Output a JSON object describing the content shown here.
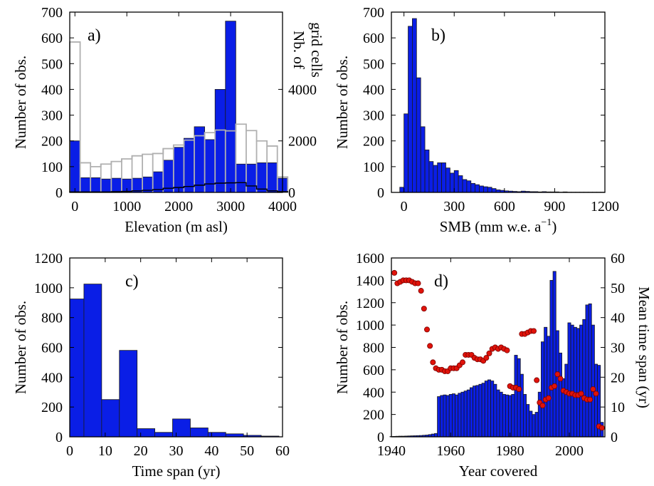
{
  "colors": {
    "bar": "#0a1ee6",
    "bar_edge": "#1a1a1a",
    "outline": "#b0b0b0",
    "dot": "#e0130a",
    "dot_edge": "#7a0000"
  },
  "chart_data": [
    {
      "id": "a",
      "panel_label": "a)",
      "type": "bar",
      "xlabel": "Elevation (m asl)",
      "ylabel": "Number of obs.",
      "y2label_lines": [
        "Nb. of",
        "grid cells"
      ],
      "xlim": [
        -100,
        4000
      ],
      "ylim": [
        0,
        700
      ],
      "y2lim": [
        0,
        7000
      ],
      "xticks": [
        "0",
        "1000",
        "2000",
        "3000",
        "4000"
      ],
      "yticks": [
        "0",
        "100",
        "200",
        "300",
        "400",
        "500",
        "600",
        "700"
      ],
      "y2ticks": [
        "0",
        "2000",
        "4000"
      ],
      "bin_starts": [
        -100,
        100,
        300,
        500,
        700,
        900,
        1100,
        1300,
        1500,
        1700,
        1900,
        2100,
        2300,
        2500,
        2700,
        2900,
        3100,
        3300,
        3500,
        3700,
        3900
      ],
      "bin_width": 200,
      "series": [
        {
          "type": "bar",
          "values": [
            200,
            57,
            57,
            52,
            55,
            52,
            55,
            60,
            80,
            125,
            175,
            210,
            255,
            205,
            400,
            665,
            110,
            110,
            115,
            115,
            55
          ]
        },
        {
          "type": "step-outline",
          "axis": "y2",
          "values": [
            5840,
            1150,
            1000,
            1100,
            1200,
            1300,
            1420,
            1480,
            1510,
            1700,
            1840,
            2030,
            2200,
            2320,
            2420,
            2390,
            2650,
            2400,
            2000,
            1800,
            600
          ]
        },
        {
          "type": "step-line",
          "axis": "y2",
          "values": [
            20,
            20,
            20,
            20,
            30,
            40,
            60,
            80,
            110,
            160,
            190,
            230,
            280,
            330,
            360,
            370,
            380,
            250,
            130,
            60,
            30
          ]
        }
      ]
    },
    {
      "id": "b",
      "panel_label": "b)",
      "type": "bar",
      "xlabel": "SMB (mm w.e. a",
      "xlabel_sup": "−1",
      "xlabel_tail": ")",
      "ylabel": "Number of obs.",
      "xlim": [
        -75,
        1200
      ],
      "ylim": [
        0,
        700
      ],
      "xticks": [
        "0",
        "300",
        "600",
        "900",
        "1200"
      ],
      "yticks": [
        "0",
        "100",
        "200",
        "300",
        "400",
        "500",
        "600",
        "700"
      ],
      "bin_starts": [
        -25,
        0,
        25,
        50,
        75,
        100,
        125,
        150,
        175,
        200,
        225,
        250,
        275,
        300,
        325,
        350,
        375,
        400,
        425,
        450,
        475,
        500,
        525,
        550,
        575,
        600,
        625,
        650,
        675,
        700,
        725,
        750,
        775,
        800,
        825,
        850,
        875,
        900,
        925,
        950,
        975,
        1000,
        1025,
        1050,
        1075,
        1100,
        1125,
        1150,
        1175
      ],
      "bin_width": 25,
      "series": [
        {
          "type": "bar",
          "values": [
            20,
            305,
            645,
            675,
            445,
            255,
            165,
            120,
            105,
            115,
            115,
            95,
            75,
            85,
            65,
            50,
            45,
            35,
            30,
            25,
            22,
            20,
            15,
            10,
            8,
            6,
            5,
            4,
            3,
            5,
            4,
            3,
            3,
            2,
            3,
            2,
            2,
            2,
            1,
            2,
            1,
            1,
            1,
            1,
            1,
            1,
            1,
            1,
            1
          ]
        }
      ]
    },
    {
      "id": "c",
      "panel_label": "c)",
      "type": "bar",
      "xlabel": "Time span (yr)",
      "ylabel": "Number of obs.",
      "xlim": [
        0,
        60
      ],
      "ylim": [
        0,
        1200
      ],
      "xticks": [
        "0",
        "10",
        "20",
        "30",
        "40",
        "50",
        "60"
      ],
      "yticks": [
        "0",
        "200",
        "400",
        "600",
        "800",
        "1000",
        "1200"
      ],
      "bin_starts": [
        0,
        4,
        9,
        14,
        19,
        24,
        29,
        34,
        39,
        44,
        49,
        54
      ],
      "bin_width": 5,
      "first_bin_width": 4,
      "series": [
        {
          "type": "bar",
          "values": [
            925,
            1025,
            250,
            580,
            55,
            30,
            120,
            60,
            30,
            20,
            10,
            5
          ]
        }
      ]
    },
    {
      "id": "d",
      "panel_label": "d)",
      "type": "bar",
      "xlabel": "Year covered",
      "ylabel": "Number of obs.",
      "y2label": "Mean time span (yr)",
      "xlim": [
        1940,
        2012
      ],
      "ylim": [
        0,
        1600
      ],
      "y2lim": [
        0,
        60
      ],
      "xticks": [
        "1940",
        "1960",
        "1980",
        "2000"
      ],
      "yticks": [
        "0",
        "200",
        "400",
        "600",
        "800",
        "1000",
        "1200",
        "1400",
        "1600"
      ],
      "y2ticks": [
        "0",
        "10",
        "20",
        "30",
        "40",
        "50",
        "60"
      ],
      "years": [
        1940,
        1941,
        1942,
        1943,
        1944,
        1945,
        1946,
        1947,
        1948,
        1949,
        1950,
        1951,
        1952,
        1953,
        1954,
        1955,
        1956,
        1957,
        1958,
        1959,
        1960,
        1961,
        1962,
        1963,
        1964,
        1965,
        1966,
        1967,
        1968,
        1969,
        1970,
        1971,
        1972,
        1973,
        1974,
        1975,
        1976,
        1977,
        1978,
        1979,
        1980,
        1981,
        1982,
        1983,
        1984,
        1985,
        1986,
        1987,
        1988,
        1989,
        1990,
        1991,
        1992,
        1993,
        1994,
        1995,
        1996,
        1997,
        1998,
        1999,
        2000,
        2001,
        2002,
        2003,
        2004,
        2005,
        2006,
        2007,
        2008,
        2009,
        2010,
        2011
      ],
      "series": [
        {
          "type": "bar",
          "values": [
            3,
            4,
            5,
            6,
            6,
            7,
            8,
            9,
            10,
            11,
            12,
            14,
            16,
            20,
            25,
            30,
            360,
            370,
            375,
            370,
            380,
            385,
            375,
            390,
            400,
            410,
            420,
            440,
            455,
            460,
            470,
            480,
            500,
            510,
            500,
            470,
            420,
            400,
            380,
            375,
            370,
            380,
            730,
            700,
            560,
            380,
            290,
            230,
            200,
            220,
            400,
            850,
            980,
            900,
            1400,
            1480,
            950,
            750,
            520,
            650,
            1020,
            1000,
            980,
            970,
            1000,
            1050,
            1180,
            1190,
            1000,
            650,
            640,
            130
          ]
        },
        {
          "type": "scatter",
          "axis": "y2",
          "x": [
            1941,
            1942,
            1943,
            1944,
            1945,
            1946,
            1947,
            1948,
            1949,
            1950,
            1951,
            1952,
            1953,
            1954,
            1955,
            1956,
            1957,
            1958,
            1959,
            1960,
            1961,
            1962,
            1963,
            1964,
            1965,
            1966,
            1967,
            1968,
            1969,
            1970,
            1971,
            1972,
            1973,
            1974,
            1975,
            1976,
            1977,
            1978,
            1979,
            1980,
            1981,
            1982,
            1983,
            1984,
            1985,
            1986,
            1987,
            1988,
            1989,
            1990,
            1991,
            1992,
            1993,
            1994,
            1995,
            1996,
            1997,
            1998,
            1999,
            2000,
            2001,
            2002,
            2003,
            2004,
            2005,
            2006,
            2007,
            2008,
            2009,
            2010,
            2011
          ],
          "values": [
            55,
            51.5,
            52,
            52.5,
            52.5,
            52.5,
            52,
            51.5,
            51.5,
            49,
            43,
            36,
            30.5,
            25,
            23,
            22.5,
            22.5,
            22,
            22,
            23,
            23,
            23,
            24,
            25,
            27.5,
            27.5,
            27.5,
            26.5,
            26,
            26,
            25.5,
            26.5,
            28,
            29.5,
            30,
            29.5,
            30,
            29.5,
            29,
            17,
            16.5,
            16.5,
            16,
            34.5,
            34.5,
            35,
            35.5,
            35.5,
            19,
            11.5,
            10.5,
            12.5,
            13,
            16.5,
            17,
            21,
            19.5,
            15.5,
            15,
            14.5,
            14.5,
            14,
            14,
            14.5,
            13,
            12.5,
            12.5,
            16,
            14.5,
            3.5,
            3
          ]
        }
      ]
    }
  ]
}
